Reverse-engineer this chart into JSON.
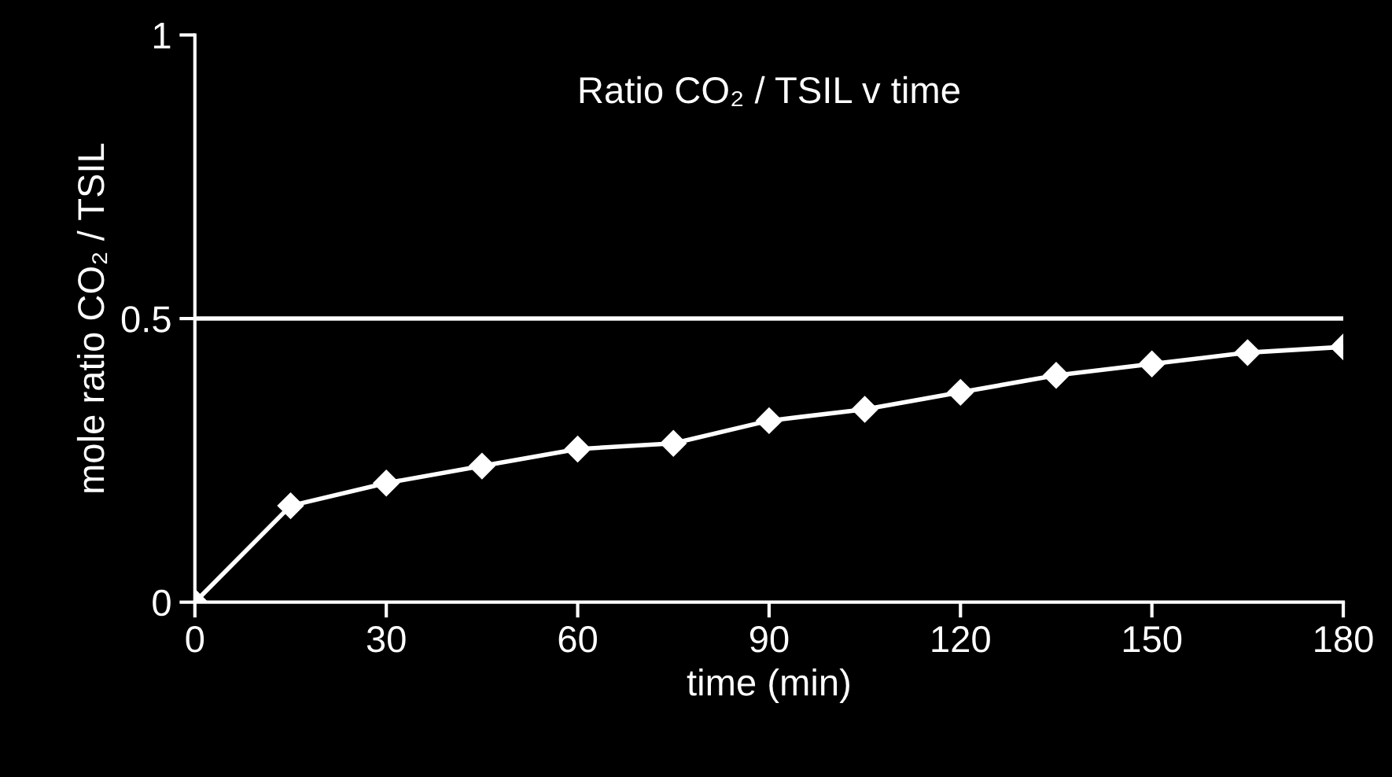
{
  "chart_data": {
    "type": "line",
    "title": "Ratio CO₂ / TSIL v time",
    "xlabel": "time (min)",
    "ylabel": "mole ratio CO₂ / TSIL",
    "x": [
      0,
      15,
      30,
      45,
      60,
      75,
      90,
      105,
      120,
      135,
      150,
      165,
      180
    ],
    "series": [
      {
        "color": "#ffffff",
        "values": [
          0,
          0.17,
          0.21,
          0.24,
          0.27,
          0.28,
          0.32,
          0.34,
          0.37,
          0.4,
          0.42,
          0.44,
          0.45
        ]
      }
    ],
    "xlim": [
      0,
      180
    ],
    "ylim": [
      0,
      1
    ],
    "xticks": [
      0,
      30,
      60,
      90,
      120,
      150,
      180
    ],
    "yticks": [
      0,
      0.5,
      1
    ],
    "ref_lines": [
      {
        "axis": "y",
        "value": 0.5,
        "color": "#ffffff"
      }
    ],
    "marker": "diamond",
    "line_style": "solid",
    "grid": false,
    "legend": false
  }
}
